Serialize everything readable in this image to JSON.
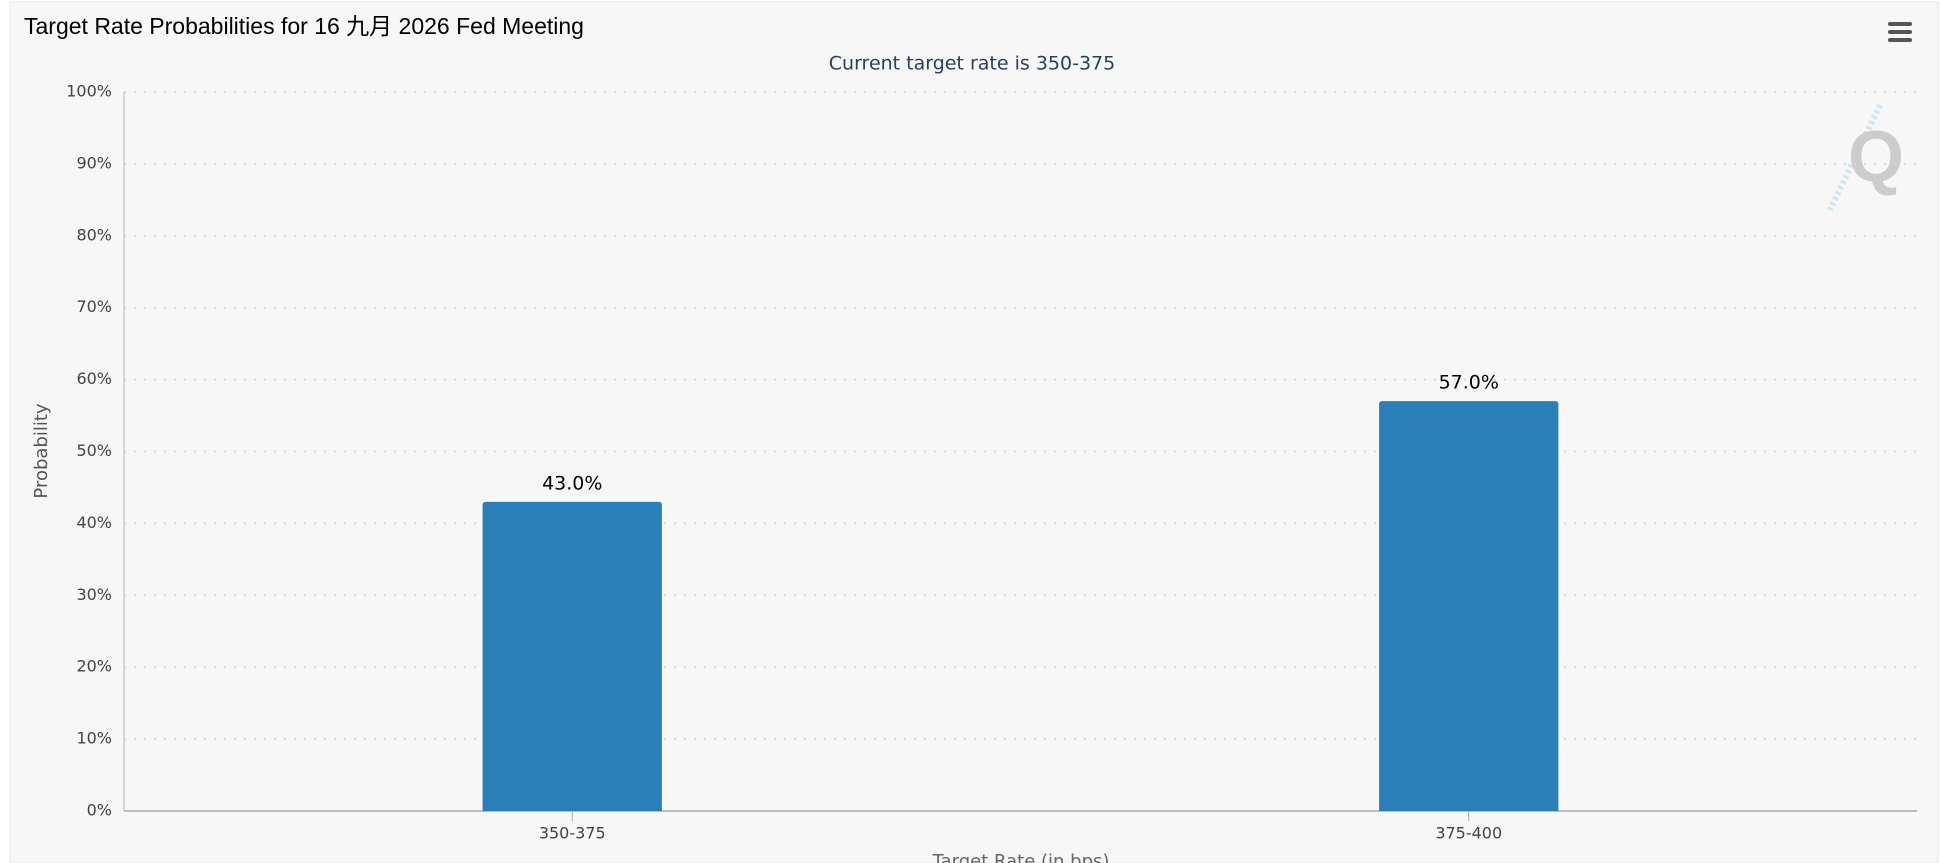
{
  "chart_data": {
    "type": "bar",
    "title": "Target Rate Probabilities for 16 九月 2026 Fed Meeting",
    "subtitle": "Current target rate is 350-375",
    "x_label": "Target Rate (in bps)",
    "y_label": "Probability",
    "categories": [
      "350-375",
      "375-400"
    ],
    "values": [
      43.0,
      57.0
    ],
    "value_labels": [
      "43.0%",
      "57.0%"
    ],
    "color": "#2a7fb8",
    "ylim": [
      0,
      100
    ],
    "yticks": [
      {
        "value": 0,
        "label": "0%"
      },
      {
        "value": 10,
        "label": "10%"
      },
      {
        "value": 20,
        "label": "20%"
      },
      {
        "value": 30,
        "label": "30%"
      },
      {
        "value": 40,
        "label": "40%"
      },
      {
        "value": 50,
        "label": "50%"
      },
      {
        "value": 60,
        "label": "60%"
      },
      {
        "value": 70,
        "label": "70%"
      },
      {
        "value": 80,
        "label": "80%"
      },
      {
        "value": 90,
        "label": "90%"
      },
      {
        "value": 100,
        "label": "100%"
      }
    ],
    "grid": true
  }
}
